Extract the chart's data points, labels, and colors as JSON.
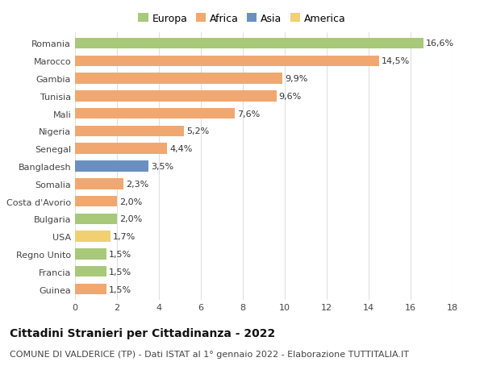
{
  "categories": [
    "Romania",
    "Marocco",
    "Gambia",
    "Tunisia",
    "Mali",
    "Nigeria",
    "Senegal",
    "Bangladesh",
    "Somalia",
    "Costa d'Avorio",
    "Bulgaria",
    "USA",
    "Regno Unito",
    "Francia",
    "Guinea"
  ],
  "values": [
    16.6,
    14.5,
    9.9,
    9.6,
    7.6,
    5.2,
    4.4,
    3.5,
    2.3,
    2.0,
    2.0,
    1.7,
    1.5,
    1.5,
    1.5
  ],
  "labels": [
    "16,6%",
    "14,5%",
    "9,9%",
    "9,6%",
    "7,6%",
    "5,2%",
    "4,4%",
    "3,5%",
    "2,3%",
    "2,0%",
    "2,0%",
    "1,7%",
    "1,5%",
    "1,5%",
    "1,5%"
  ],
  "colors": [
    "#a8c87a",
    "#f0a870",
    "#f0a870",
    "#f0a870",
    "#f0a870",
    "#f0a870",
    "#f0a870",
    "#6b8fc0",
    "#f0a870",
    "#f0a870",
    "#a8c87a",
    "#f0d070",
    "#a8c87a",
    "#a8c87a",
    "#f0a870"
  ],
  "legend": {
    "Europa": "#a8c87a",
    "Africa": "#f0a870",
    "Asia": "#6b8fc0",
    "America": "#f0d070"
  },
  "title": "Cittadini Stranieri per Cittadinanza - 2022",
  "subtitle": "COMUNE DI VALDERICE (TP) - Dati ISTAT al 1° gennaio 2022 - Elaborazione TUTTITALIA.IT",
  "xlim": [
    0,
    18
  ],
  "xticks": [
    0,
    2,
    4,
    6,
    8,
    10,
    12,
    14,
    16,
    18
  ],
  "background_color": "#ffffff",
  "grid_color": "#e0e0e0",
  "bar_height": 0.62,
  "title_fontsize": 10,
  "subtitle_fontsize": 8,
  "label_fontsize": 8,
  "tick_fontsize": 8,
  "legend_fontsize": 9
}
